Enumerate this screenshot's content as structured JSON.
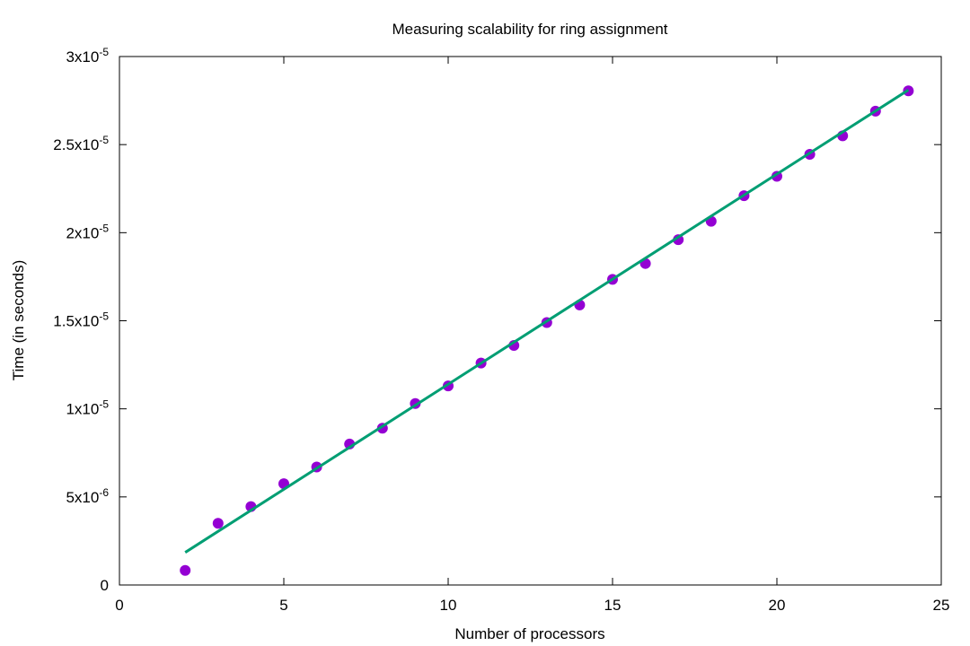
{
  "chart_data": {
    "type": "scatter",
    "title": "Measuring scalability for ring assignment",
    "xlabel": "Number of processors",
    "ylabel": "Time (in seconds)",
    "xlim": [
      0,
      25
    ],
    "ylim": [
      0,
      3e-05
    ],
    "x_ticks": [
      {
        "value": 0,
        "label": "0"
      },
      {
        "value": 5,
        "label": "5"
      },
      {
        "value": 10,
        "label": "10"
      },
      {
        "value": 15,
        "label": "15"
      },
      {
        "value": 20,
        "label": "20"
      },
      {
        "value": 25,
        "label": "25"
      }
    ],
    "y_ticks": [
      {
        "value": 0,
        "mant": "0",
        "exp": ""
      },
      {
        "value": 5e-06,
        "mant": "5x10",
        "exp": "-6"
      },
      {
        "value": 1e-05,
        "mant": "1x10",
        "exp": "-5"
      },
      {
        "value": 1.5e-05,
        "mant": "1.5x10",
        "exp": "-5"
      },
      {
        "value": 2e-05,
        "mant": "2x10",
        "exp": "-5"
      },
      {
        "value": 2.5e-05,
        "mant": "2.5x10",
        "exp": "-5"
      },
      {
        "value": 3e-05,
        "mant": "3x10",
        "exp": "-5"
      }
    ],
    "grid": false,
    "series": [
      {
        "kind": "points",
        "color": "#9400d3",
        "x": [
          2,
          3,
          4,
          5,
          6,
          7,
          8,
          9,
          10,
          11,
          12,
          13,
          14,
          15,
          16,
          17,
          18,
          19,
          20,
          21,
          22,
          23,
          24
        ],
        "y": [
          8.3e-07,
          3.5e-06,
          4.45e-06,
          5.75e-06,
          6.7e-06,
          8e-06,
          8.9e-06,
          1.03e-05,
          1.13e-05,
          1.26e-05,
          1.36e-05,
          1.49e-05,
          1.59e-05,
          1.735e-05,
          1.825e-05,
          1.96e-05,
          2.065e-05,
          2.21e-05,
          2.32e-05,
          2.445e-05,
          2.55e-05,
          2.69e-05,
          2.805e-05
        ]
      },
      {
        "kind": "line",
        "color": "#009e73",
        "x": [
          2,
          24
        ],
        "y": [
          1.85e-06,
          2.81e-05
        ]
      }
    ]
  }
}
